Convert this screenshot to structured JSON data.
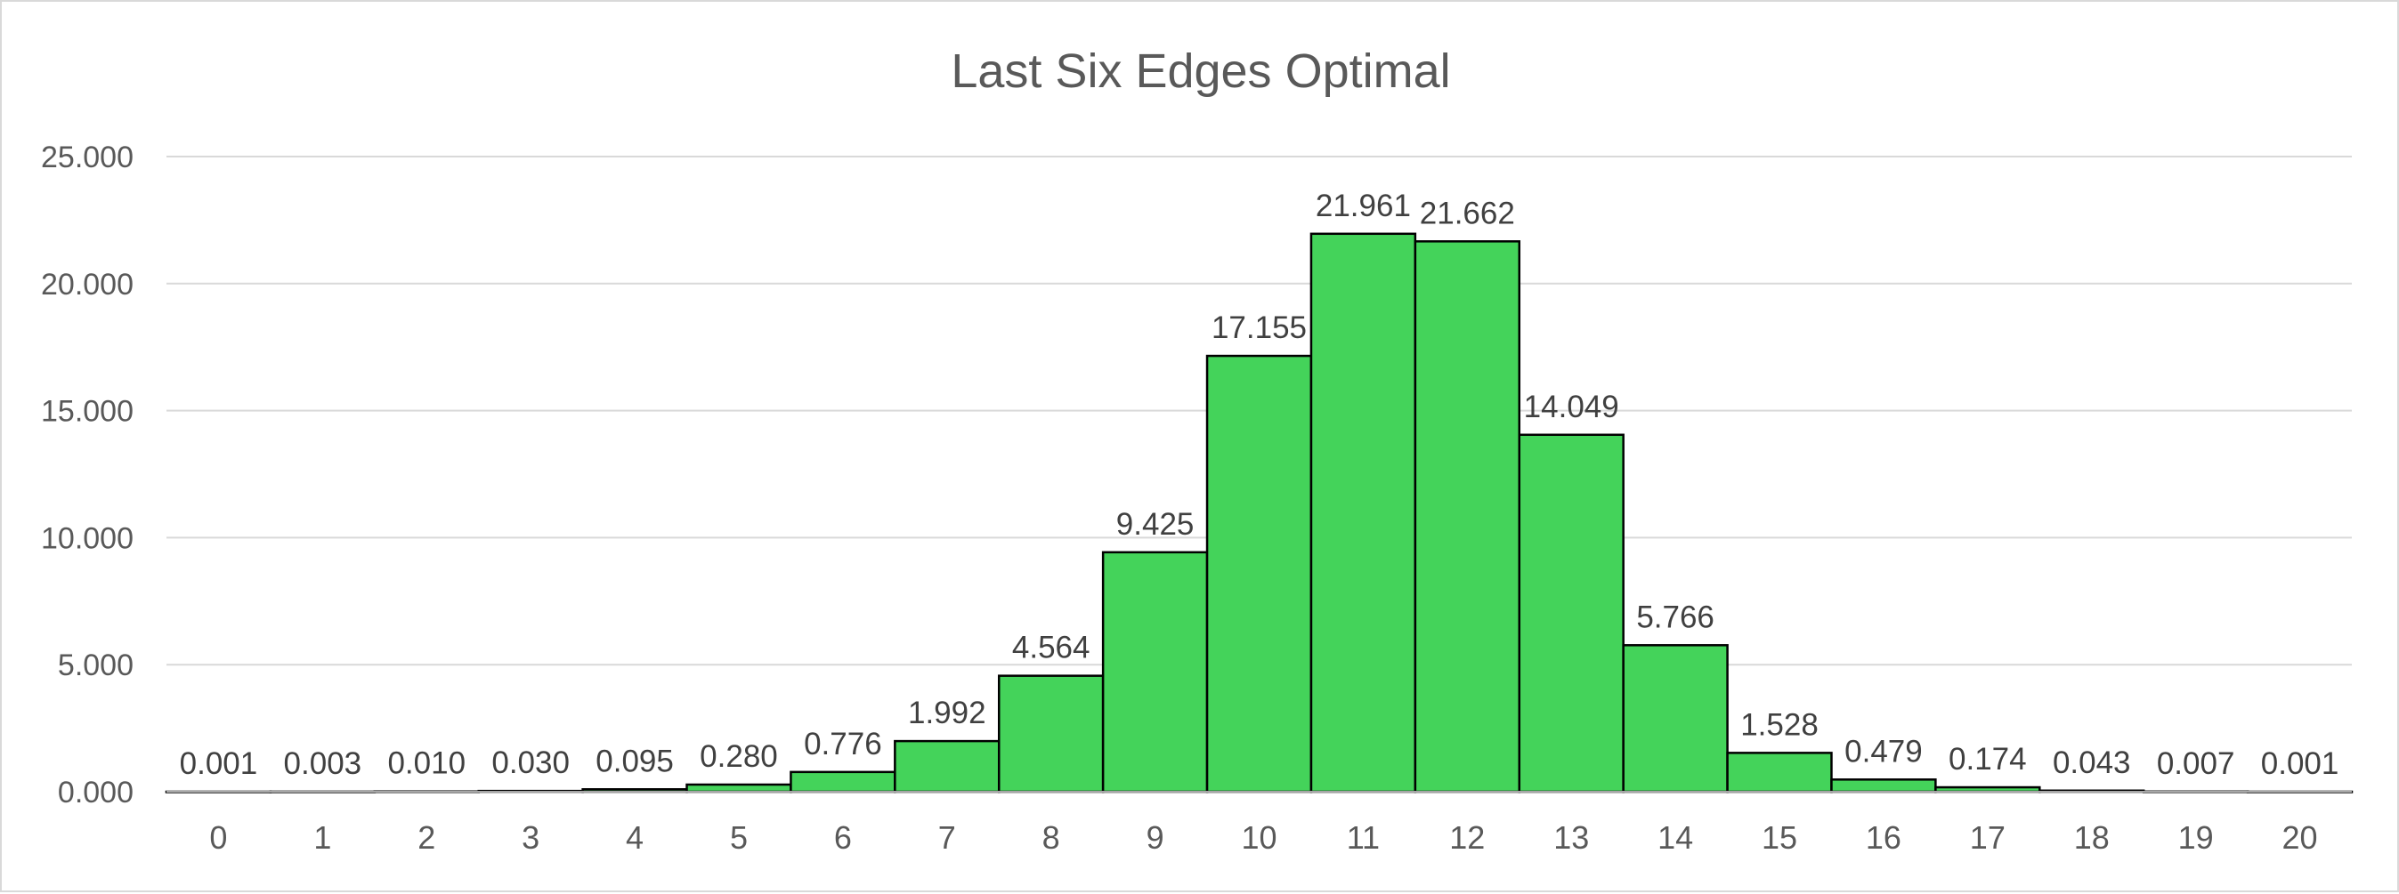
{
  "chart_data": {
    "type": "bar",
    "title": "Last Six Edges Optimal",
    "xlabel": "",
    "ylabel": "",
    "categories": [
      "0",
      "1",
      "2",
      "3",
      "4",
      "5",
      "6",
      "7",
      "8",
      "9",
      "10",
      "11",
      "12",
      "13",
      "14",
      "15",
      "16",
      "17",
      "18",
      "19",
      "20"
    ],
    "values": [
      0.001,
      0.003,
      0.01,
      0.03,
      0.095,
      0.28,
      0.776,
      1.992,
      4.564,
      9.425,
      17.155,
      21.961,
      21.662,
      14.049,
      5.766,
      1.528,
      0.479,
      0.174,
      0.043,
      0.007,
      0.001
    ],
    "data_labels": [
      "0.001",
      "0.003",
      "0.010",
      "0.030",
      "0.095",
      "0.280",
      "0.776",
      "1.992",
      "4.564",
      "9.425",
      "17.155",
      "21.961",
      "21.662",
      "14.049",
      "5.766",
      "1.528",
      "0.479",
      "0.174",
      "0.043",
      "0.007",
      "0.001"
    ],
    "yticks": [
      "0.000",
      "5.000",
      "10.000",
      "15.000",
      "20.000",
      "25.000"
    ],
    "ylim": [
      0,
      25
    ],
    "grid": true,
    "legend": "none",
    "bar_color": "#44d35a",
    "bar_edge_color": "#000000"
  }
}
